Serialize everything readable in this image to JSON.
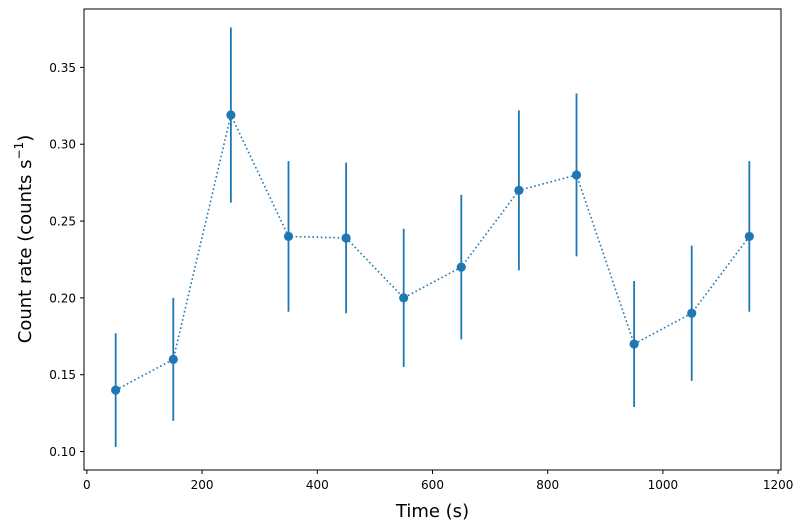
{
  "chart_data": {
    "type": "scatter",
    "xlabel": "Time (s)",
    "ylabel_main": "Count rate (counts s",
    "ylabel_sup": "−1",
    "ylabel_close": ")",
    "xlim": [
      -5,
      1205
    ],
    "ylim": [
      0.088,
      0.388
    ],
    "xticks": [
      0,
      200,
      400,
      600,
      800,
      1000,
      1200
    ],
    "yticks": [
      0.1,
      0.15,
      0.2,
      0.25,
      0.3,
      0.35
    ],
    "x": [
      50,
      150,
      250,
      350,
      450,
      550,
      650,
      750,
      850,
      950,
      1050,
      1150
    ],
    "y": [
      0.14,
      0.16,
      0.319,
      0.24,
      0.239,
      0.2,
      0.22,
      0.27,
      0.28,
      0.17,
      0.19,
      0.24
    ],
    "yerr": [
      0.037,
      0.04,
      0.057,
      0.049,
      0.049,
      0.045,
      0.047,
      0.052,
      0.053,
      0.041,
      0.044,
      0.049
    ],
    "line_style": "dotted",
    "marker": "circle",
    "color": "#1f77b4",
    "grid": false
  }
}
